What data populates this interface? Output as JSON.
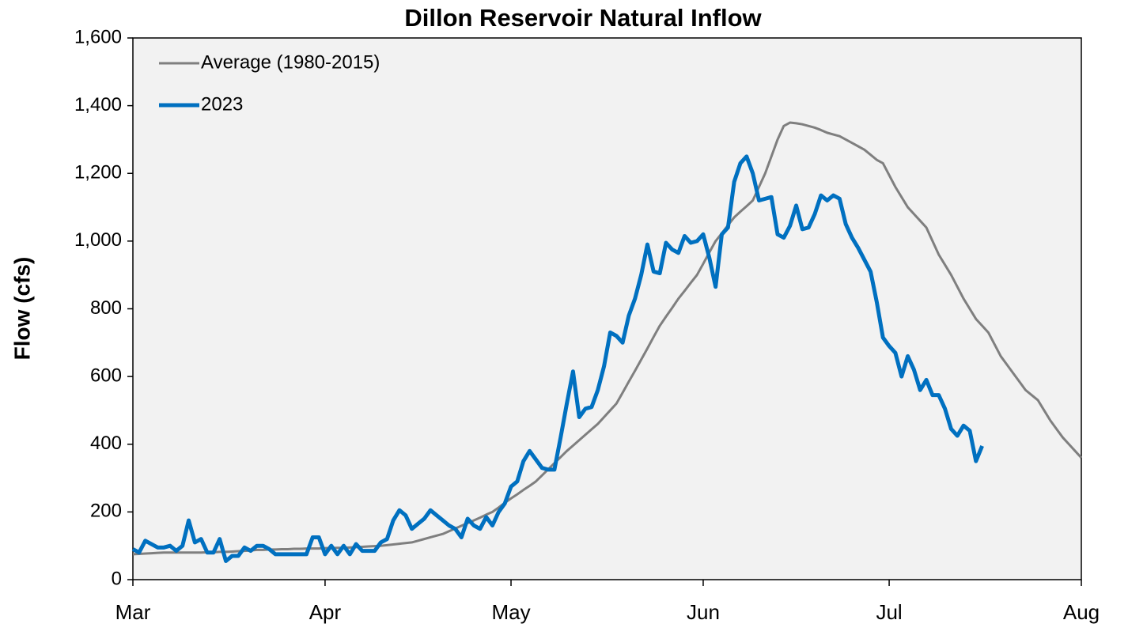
{
  "chart_data": {
    "type": "line",
    "title": "Dillon Reservoir Natural Inflow",
    "ylabel": "Flow (cfs)",
    "x": [
      0,
      1,
      2,
      3,
      4,
      5,
      6,
      7,
      8,
      9,
      10,
      11,
      12,
      13,
      14,
      15,
      16,
      17,
      18,
      19,
      20,
      21,
      22,
      23,
      24,
      25,
      26,
      27,
      28,
      29,
      30,
      31,
      32,
      33,
      34,
      35,
      36,
      37,
      38,
      39,
      40,
      41,
      42,
      43,
      44,
      45,
      46,
      47,
      48,
      49,
      50,
      51,
      52,
      53,
      54,
      55,
      56,
      57,
      58,
      59,
      60,
      61,
      62,
      63,
      64,
      65,
      66,
      67,
      68,
      69,
      70,
      71,
      72,
      73,
      74,
      75,
      76,
      77,
      78,
      79,
      80,
      81,
      82,
      83,
      84,
      85,
      86,
      87,
      88,
      89,
      90,
      91,
      92,
      93,
      94,
      95,
      96,
      97,
      98,
      99,
      100,
      101,
      102,
      103,
      104,
      105,
      106,
      107,
      108,
      109,
      110,
      111,
      112,
      113,
      114,
      115,
      116,
      117,
      118,
      119,
      120,
      121,
      122,
      123,
      124,
      125,
      126,
      127,
      128,
      129,
      130,
      131,
      132,
      133,
      134,
      135,
      136,
      137,
      138,
      139,
      140,
      141,
      142,
      143,
      144,
      145,
      146,
      147,
      148,
      149,
      150,
      151,
      152,
      153
    ],
    "xlim": [
      0,
      153
    ],
    "xticks": [
      {
        "value": 0,
        "label": "Mar"
      },
      {
        "value": 31,
        "label": "Apr"
      },
      {
        "value": 61,
        "label": "May"
      },
      {
        "value": 92,
        "label": "Jun"
      },
      {
        "value": 122,
        "label": "Jul"
      },
      {
        "value": 153,
        "label": "Aug"
      }
    ],
    "ylim": [
      0,
      1600
    ],
    "yticks": [
      0,
      200,
      400,
      600,
      800,
      {
        "value": 1000,
        "label": "1,000"
      },
      {
        "value": 1200,
        "label": "1,200"
      },
      {
        "value": 1400,
        "label": "1,400"
      },
      {
        "value": 1600,
        "label": "1,600"
      }
    ],
    "grid": false,
    "legend": "upper left",
    "series": [
      {
        "name": "Average (1980-2015)",
        "color": "#7f7f7f",
        "width": 3,
        "values": [
          75,
          76,
          77,
          78,
          79,
          80,
          80,
          80,
          80,
          80,
          80,
          80,
          81,
          81,
          82,
          82,
          83,
          84,
          85,
          86,
          88,
          88,
          89,
          89,
          90,
          90,
          91,
          91,
          92,
          92,
          92,
          93,
          93,
          94,
          94,
          95,
          96,
          97,
          98,
          99,
          100,
          102,
          104,
          106,
          108,
          110,
          115,
          120,
          125,
          130,
          135,
          143,
          151,
          159,
          167,
          175,
          183,
          192,
          200,
          213,
          227,
          240,
          252,
          265,
          277,
          290,
          308,
          326,
          344,
          362,
          380,
          396,
          412,
          428,
          444,
          460,
          480,
          500,
          520,
          552,
          585,
          617,
          650,
          683,
          717,
          750,
          777,
          803,
          830,
          853,
          877,
          900,
          933,
          967,
          1000,
          1023,
          1047,
          1070,
          1087,
          1103,
          1120,
          1160,
          1200,
          1250,
          1300,
          1340,
          1350,
          1348,
          1345,
          1340,
          1335,
          1328,
          1320,
          1315,
          1310,
          1300,
          1290,
          1280,
          1270,
          1255,
          1240,
          1230,
          1195,
          1160,
          1130,
          1100,
          1080,
          1060,
          1040,
          1000,
          960,
          930,
          900,
          865,
          830,
          800,
          770,
          750,
          730,
          695,
          660,
          635,
          610,
          585,
          560,
          545,
          530,
          500,
          470,
          445,
          420,
          400,
          380,
          360
        ]
      },
      {
        "name": "2023",
        "color": "#0070c0",
        "width": 5,
        "values": [
          90,
          80,
          115,
          105,
          95,
          95,
          100,
          85,
          100,
          175,
          110,
          120,
          80,
          80,
          120,
          55,
          70,
          70,
          95,
          85,
          100,
          100,
          90,
          75,
          75,
          75,
          75,
          75,
          75,
          125,
          125,
          75,
          100,
          75,
          100,
          75,
          105,
          85,
          85,
          85,
          110,
          120,
          175,
          205,
          190,
          150,
          165,
          180,
          205,
          190,
          175,
          160,
          150,
          125,
          180,
          160,
          150,
          185,
          160,
          200,
          225,
          275,
          290,
          350,
          380,
          355,
          330,
          325,
          325,
          420,
          520,
          615,
          480,
          505,
          510,
          560,
          630,
          730,
          720,
          700,
          780,
          830,
          900,
          990,
          910,
          905,
          995,
          975,
          965,
          1015,
          995,
          1000,
          1020,
          950,
          865,
          1020,
          1040,
          1175,
          1230,
          1250,
          1200,
          1120,
          1125,
          1130,
          1020,
          1010,
          1045,
          1105,
          1035,
          1040,
          1080,
          1135,
          1120,
          1135,
          1125,
          1050,
          1010,
          980,
          945,
          910,
          820,
          715,
          690,
          670,
          600,
          660,
          620,
          560,
          590,
          545,
          545,
          505,
          445,
          425,
          455,
          440,
          350,
          395,
          null,
          null,
          null,
          null,
          null,
          null,
          null,
          null,
          null,
          null,
          null,
          null,
          null,
          null,
          null,
          null
        ]
      }
    ]
  }
}
